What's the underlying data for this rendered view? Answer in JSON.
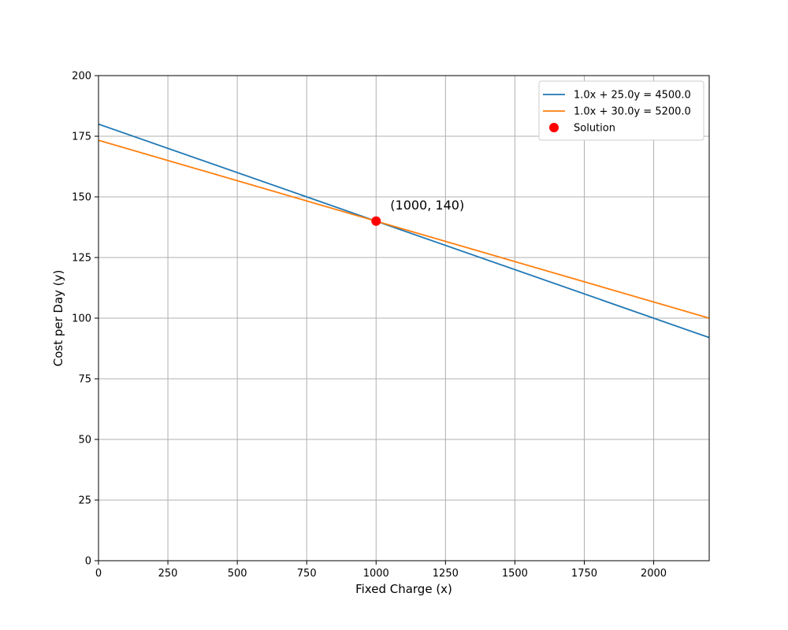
{
  "chart_data": {
    "type": "line",
    "xlabel": "Fixed Charge (x)",
    "ylabel": "Cost per Day (y)",
    "xlim": [
      0,
      2200
    ],
    "ylim": [
      0,
      200
    ],
    "xticks": [
      0,
      250,
      500,
      750,
      1000,
      1250,
      1500,
      1750,
      2000
    ],
    "yticks": [
      0,
      25,
      50,
      75,
      100,
      125,
      150,
      175,
      200
    ],
    "grid": true,
    "legend_position": "top-right",
    "series": [
      {
        "name": "1.0x + 25.0y = 4500.0",
        "color": "#1f77b4",
        "x": [
          0,
          2200
        ],
        "y": [
          180,
          92
        ]
      },
      {
        "name": "1.0x + 30.0y = 5200.0",
        "color": "#ff7f0e",
        "x": [
          0,
          2200
        ],
        "y": [
          173.33,
          100
        ]
      }
    ],
    "points": [
      {
        "name": "Solution",
        "color": "#ff0000",
        "x": 1000,
        "y": 140,
        "label": "(1000, 140)"
      }
    ]
  }
}
